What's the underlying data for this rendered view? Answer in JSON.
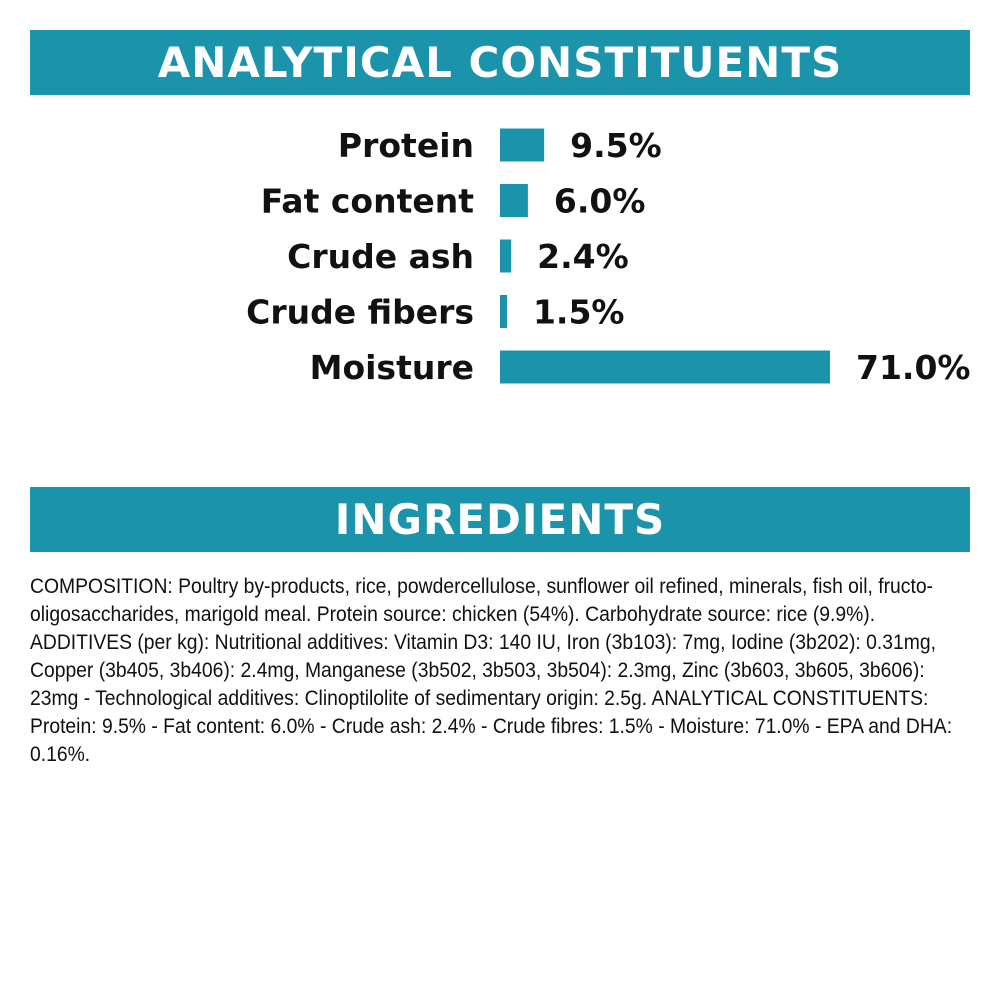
{
  "header": {
    "analytical_title": "ANALYTICAL CONSTITUENTS",
    "ingredients_title": "INGREDIENTS"
  },
  "chart_data": {
    "type": "bar",
    "orientation": "horizontal",
    "categories": [
      "Protein",
      "Fat content",
      "Crude ash",
      "Crude fibers",
      "Moisture"
    ],
    "values": [
      9.5,
      6.0,
      2.4,
      1.5,
      71.0
    ],
    "value_labels": [
      "9.5%",
      "6.0%",
      "2.4%",
      "1.5%",
      "71.0%"
    ],
    "unit": "%",
    "color": "#1a93ab",
    "grid": false,
    "title": "",
    "xlabel": "",
    "ylabel": ""
  },
  "ingredients": {
    "composition": "COMPOSITION: Poultry by-products, rice, powdercellulose, sunflower oil refined, minerals, fish oil, fructo-oligosaccharides, marigold meal. Protein source: chicken (54%). Carbohydrate source: rice (9.9%). ADDITIVES (per kg): Nutritional additives: Vitamin D3: 140 IU, Iron (3b103): 7mg, Iodine (3b202): 0.31mg, Copper (3b405, 3b406): 2.4mg, Manganese (3b502, 3b503, 3b504): 2.3mg, Zinc (3b603, 3b605, 3b606): 23mg - Technological additives: Clinoptilolite of sedimentary origin: 2.5g. ANALYTICAL CONSTITUENTS: Protein: 9.5% - Fat content: 6.0% - Crude ash: 2.4% - Crude fibres: 1.5% - Moisture: 71.0% - EPA and DHA: 0.16%."
  },
  "colors": {
    "accent": "#1a93ab",
    "text": "#111111",
    "background": "#ffffff"
  }
}
